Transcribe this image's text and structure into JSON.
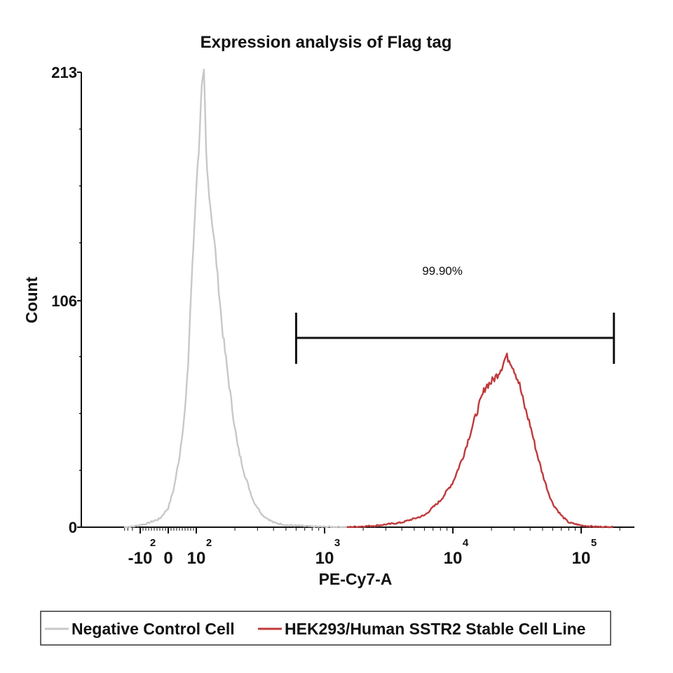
{
  "chart_data": {
    "type": "area",
    "title": "Expression analysis of Flag tag",
    "xlabel": "PE-Cy7-A",
    "ylabel": "Count",
    "x_scale": "biexponential",
    "ylim": [
      0,
      213
    ],
    "y_ticks": [
      {
        "value": 0,
        "label": "0"
      },
      {
        "value": 106,
        "label": "106"
      },
      {
        "value": 213,
        "label": "213"
      }
    ],
    "x_ticks": [
      {
        "value": -100,
        "base": "-10",
        "exp": "2"
      },
      {
        "value": 0,
        "base": "0",
        "exp": ""
      },
      {
        "value": 100,
        "base": "10",
        "exp": "2"
      },
      {
        "value": 1000,
        "base": "10",
        "exp": "3"
      },
      {
        "value": 10000,
        "base": "10",
        "exp": "4"
      },
      {
        "value": 100000,
        "base": "10",
        "exp": "5"
      }
    ],
    "gate": {
      "label": "99.90%",
      "x_start": 600,
      "x_end": 180000
    },
    "legend": {
      "position": "bottom"
    },
    "series": [
      {
        "name": "Negative Control Cell",
        "color": "#c8c8c8",
        "x": [
          -420,
          -200,
          -80,
          -30,
          0,
          20,
          40,
          60,
          70,
          80,
          90,
          100,
          105,
          110,
          115,
          120,
          130,
          140,
          150,
          160,
          175,
          190,
          210,
          240,
          280,
          330,
          400,
          500,
          800,
          1500
        ],
        "y": [
          0,
          0.3,
          1.5,
          4,
          9,
          18,
          33,
          55,
          73,
          106,
          132,
          160,
          178,
          205,
          213,
          170,
          148,
          131,
          111,
          92,
          73,
          56,
          38,
          24,
          12,
          5.5,
          2.2,
          1,
          0.3,
          0
        ]
      },
      {
        "name": "HEK293/Human SSTR2 Stable Cell Line",
        "color": "#c0393b",
        "x": [
          1500,
          2500,
          4000,
          6000,
          8000,
          10000,
          12000,
          14000,
          16000,
          18000,
          20000,
          22000,
          24000,
          26000,
          28000,
          30000,
          33000,
          36000,
          40000,
          45000,
          50000,
          55000,
          60000,
          70000,
          80000,
          100000,
          130000,
          180000
        ],
        "y": [
          0,
          0.7,
          2.2,
          5.5,
          12.5,
          21,
          33,
          46,
          57,
          66,
          68,
          71,
          75,
          80,
          78,
          74,
          67,
          57,
          48,
          35,
          25,
          17,
          11,
          5.5,
          2.2,
          0.8,
          0.2,
          0
        ]
      }
    ]
  }
}
